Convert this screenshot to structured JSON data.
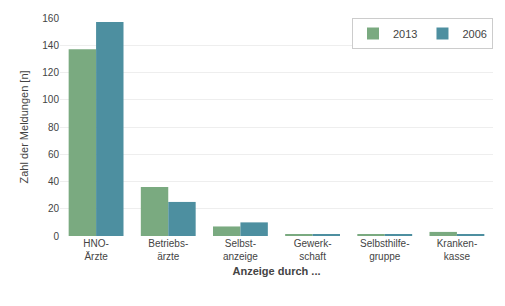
{
  "chart_data": {
    "type": "bar",
    "xlabel": "Anzeige durch ...",
    "ylabel": "Zahl der Meldungen [n]",
    "categories": [
      "HNO-\nÄrzte",
      "Betriebs-\närzte",
      "Selbst-\nanzeige",
      "Gewerk-\nschaft",
      "Selbsthilfe-\ngruppe",
      "Kranken-\nkasse"
    ],
    "series": [
      {
        "name": "2013",
        "color": "#7aaa80",
        "values": [
          137,
          36,
          7,
          1,
          1,
          3
        ]
      },
      {
        "name": "2006",
        "color": "#4d8fa0",
        "values": [
          157,
          25,
          10,
          1,
          1,
          1
        ]
      }
    ],
    "ylim": [
      0,
      160
    ],
    "yticks": [
      0,
      20,
      40,
      60,
      80,
      100,
      120,
      140,
      160
    ],
    "grid": true,
    "legend": "upper right"
  }
}
